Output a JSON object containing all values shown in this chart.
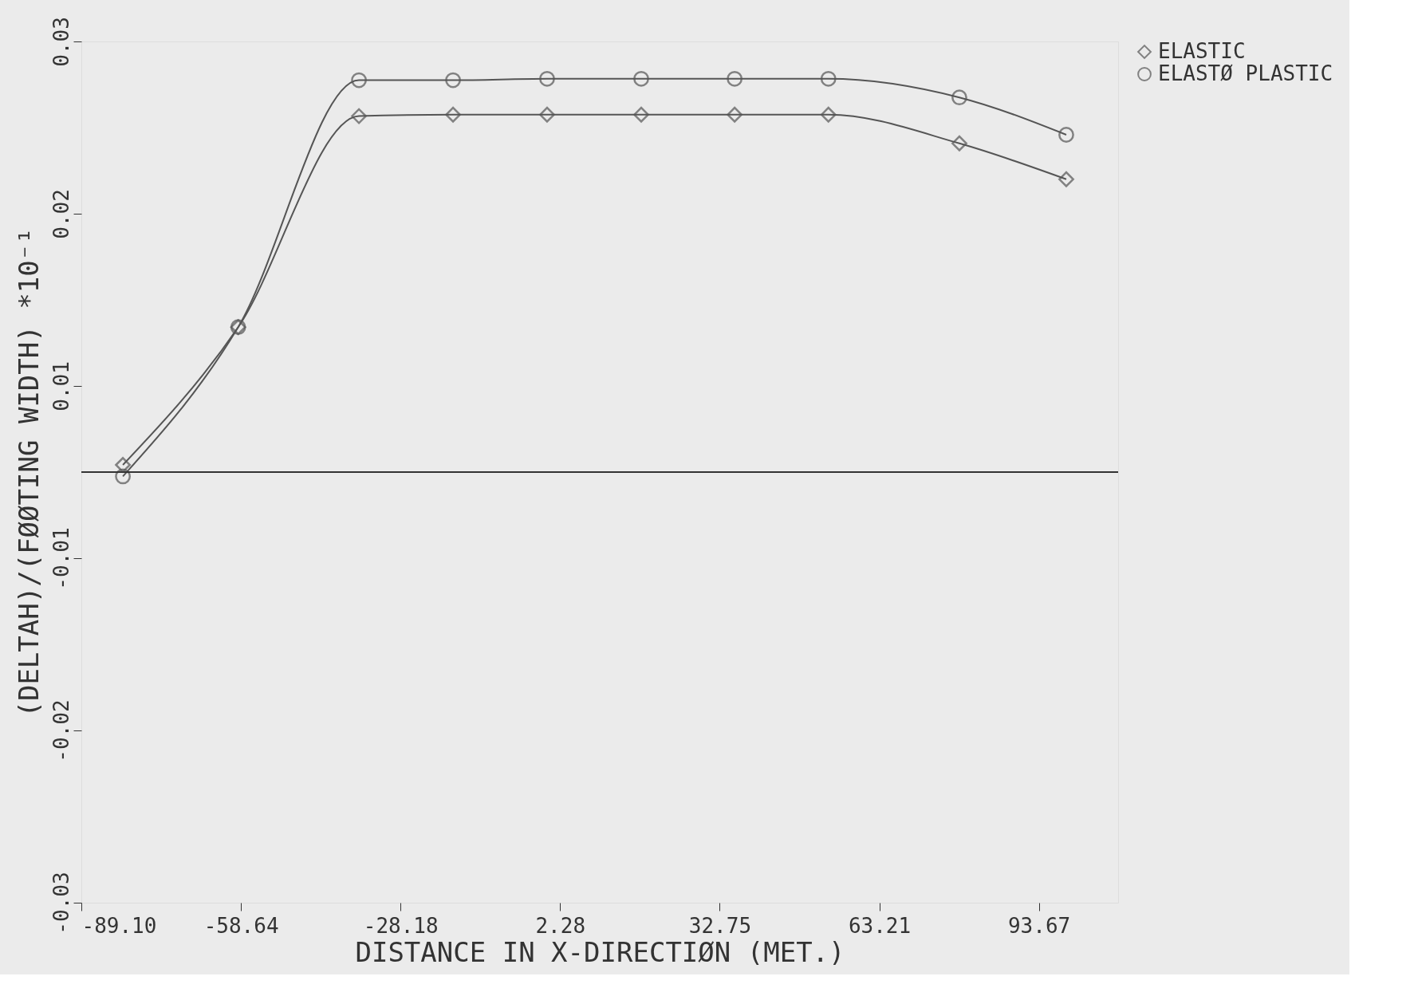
{
  "chart_data": {
    "type": "line",
    "xlabel": "DISTANCE IN X-DIRECTIØN (MET.)",
    "ylabel": "(DELTAH)/(FØØTING WIDTH) *10⁻¹",
    "x": [
      -81.17,
      -59.16,
      -36.11,
      -18.15,
      -0.2,
      17.77,
      35.6,
      53.5,
      78.5,
      98.9
    ],
    "series": [
      {
        "name": "ELASTIC",
        "color": "#555555",
        "marker": "diamond",
        "values": [
          0.0005,
          0.0101,
          0.0248,
          0.0249,
          0.0249,
          0.0249,
          0.0249,
          0.0249,
          0.0229,
          0.0204
        ]
      },
      {
        "name": "ELASTØ PLASTIC",
        "color": "#555555",
        "marker": "circle",
        "values": [
          -0.0003,
          0.0101,
          0.0273,
          0.0273,
          0.0274,
          0.0274,
          0.0274,
          0.0274,
          0.0261,
          0.0235
        ]
      }
    ],
    "xlim": [
      -89.1,
      108.8
    ],
    "xticks": [
      {
        "value": -89.1,
        "label": "-89.10"
      },
      {
        "value": -58.64,
        "label": "-58.64"
      },
      {
        "value": -28.18,
        "label": "-28.18"
      },
      {
        "value": 2.28,
        "label": "2.28"
      },
      {
        "value": 32.75,
        "label": "32.75"
      },
      {
        "value": 63.21,
        "label": "63.21"
      },
      {
        "value": 93.67,
        "label": "93.67"
      }
    ],
    "ylim": [
      -0.03,
      0.03
    ],
    "yticks": [
      {
        "value": -0.03,
        "label": "-0.03"
      },
      {
        "value": -0.018,
        "label": "-0.02"
      },
      {
        "value": -0.006,
        "label": "-0.01"
      },
      {
        "value": 0.006,
        "label": "0.01"
      },
      {
        "value": 0.018,
        "label": "0.02"
      },
      {
        "value": 0.03,
        "label": "0.03"
      }
    ],
    "ref_lines": [
      {
        "axis": "y",
        "value": 0,
        "label": null
      }
    ],
    "grid": false,
    "legend": "right",
    "line_style": "solid"
  }
}
